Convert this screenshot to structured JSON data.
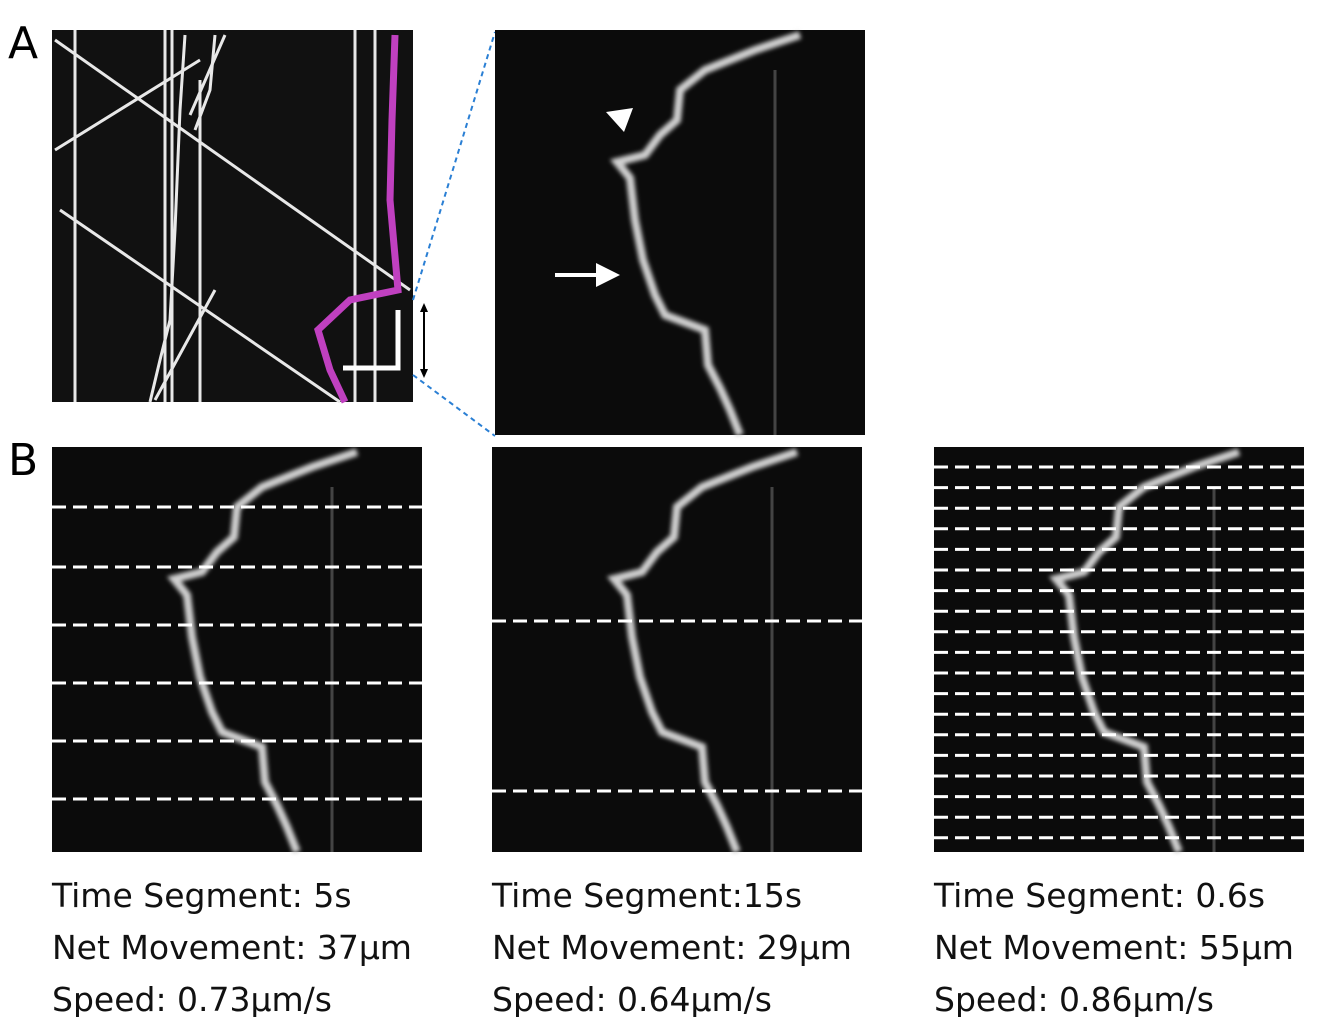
{
  "panels": {
    "a_label": "A",
    "b_label": "B"
  },
  "captions": [
    {
      "time": "Time Segment: 5s",
      "movement": "Net Movement: 37μm",
      "speed": "Speed: 0.73μm/s"
    },
    {
      "time": "Time Segment:15s",
      "movement": "Net Movement: 29μm",
      "speed": "Speed: 0.64μm/s"
    },
    {
      "time": "Time Segment: 0.6s",
      "movement": "Net Movement: 55μm",
      "speed": "Speed: 0.86μm/s"
    }
  ]
}
